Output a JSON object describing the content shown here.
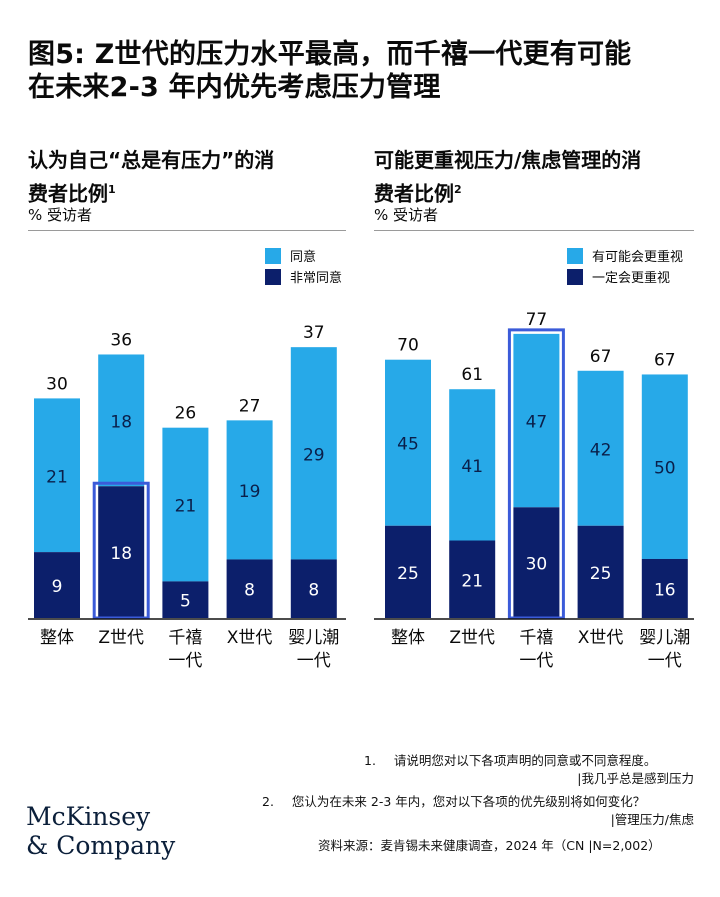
{
  "title_line1": "图5: Z世代的压力水平最高，而千禧一代更有可能",
  "title_line2": "在未来2-3 年内优先考虑压力管理",
  "colors": {
    "light": "#27a9e8",
    "dark": "#0c1f6b",
    "highlight": "#3b5bd9",
    "baseline": "#111111"
  },
  "left": {
    "title_line1": "认为自己“总是有压力”的消",
    "title_line2": "费者比例",
    "title_sup": "1",
    "unit": "% 受访者",
    "legend_light": "同意",
    "legend_dark": "非常同意"
  },
  "right": {
    "title_line1": "可能更重视压力/焦虑管理的消",
    "title_line2": "费者比例",
    "title_sup": "2",
    "unit": "% 受访者",
    "legend_light": "有可能会更重视",
    "legend_dark": "一定会更重视"
  },
  "chart_data": [
    {
      "type": "bar",
      "stacked": true,
      "categories": [
        "整体",
        "Z世代",
        "千禧一代",
        "X世代",
        "婴儿潮一代"
      ],
      "category_lines": [
        [
          "整体"
        ],
        [
          "Z世代"
        ],
        [
          "千禧",
          "一代"
        ],
        [
          "X世代"
        ],
        [
          "婴儿潮",
          "一代"
        ]
      ],
      "series": [
        {
          "name": "非常同意",
          "values": [
            9,
            18,
            5,
            8,
            8
          ]
        },
        {
          "name": "同意",
          "values": [
            21,
            18,
            21,
            19,
            29
          ]
        }
      ],
      "totals": [
        30,
        36,
        26,
        27,
        37
      ],
      "highlight_index": 1,
      "highlight_series": 0,
      "ylim": [
        0,
        40
      ],
      "grid": false,
      "legend": "top-right"
    },
    {
      "type": "bar",
      "stacked": true,
      "categories": [
        "整体",
        "Z世代",
        "千禧一代",
        "X世代",
        "婴儿潮一代"
      ],
      "category_lines": [
        [
          "整体"
        ],
        [
          "Z世代"
        ],
        [
          "千禧",
          "一代"
        ],
        [
          "X世代"
        ],
        [
          "婴儿潮",
          "一代"
        ]
      ],
      "series": [
        {
          "name": "一定会更重视",
          "values": [
            25,
            21,
            30,
            25,
            16
          ]
        },
        {
          "name": "有可能会更重视",
          "values": [
            45,
            41,
            47,
            42,
            50
          ]
        }
      ],
      "totals": [
        70,
        61,
        77,
        67,
        67
      ],
      "highlight_index": 2,
      "highlight_series": "all",
      "ylim": [
        0,
        80
      ],
      "grid": false,
      "legend": "top-right"
    }
  ],
  "notes": {
    "n1_num": "1.",
    "n1_text": "请说明您对以下各项声明的同意或不同意程度。",
    "n1_sub": "|我几乎总是感到压力",
    "n2_num": "2.",
    "n2_text": "您认为在未来 2-3 年内，您对以下各项的优先级别将如何变化？",
    "n2_sub": "|管理压力/焦虑",
    "source": "资料来源：麦肯锡未来健康调查，2024 年（CN |N=2,002）"
  },
  "logo_line1": "McKinsey",
  "logo_line2": "& Company"
}
